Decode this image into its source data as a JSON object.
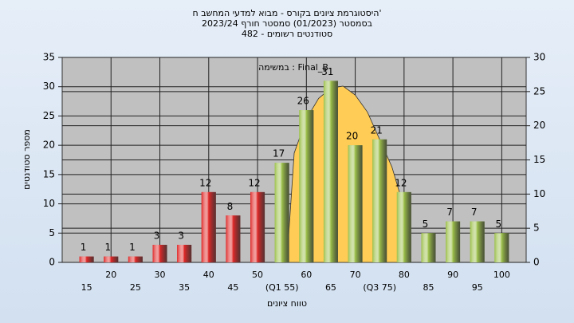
{
  "chart_data": {
    "type": "bar",
    "title": "היסטוגרמת ציונים בקורס - מבוא למדעי המחשב ח'",
    "subtitle": "בסמסטר  (01/2023)  סמסטר חורף 2023/24",
    "subtitle2": "סטודנטים רשומים - 482",
    "annotation": "במשימה : Final_B",
    "ylabel": "מספר סטודנטים",
    "xlabel": "טווח ציונים",
    "x": [
      15,
      20,
      25,
      30,
      35,
      40,
      45,
      50,
      55,
      60,
      65,
      70,
      75,
      80,
      85,
      90,
      95,
      100
    ],
    "values": [
      1,
      1,
      1,
      3,
      3,
      12,
      8,
      12,
      17,
      26,
      31,
      20,
      21,
      12,
      5,
      7,
      7,
      5
    ],
    "colors": [
      "#e02828",
      "#e02828",
      "#e02828",
      "#e02828",
      "#e02828",
      "#e02828",
      "#e02828",
      "#e02828",
      "#9cc04a",
      "#9cc04a",
      "#9cc04a",
      "#9cc04a",
      "#9cc04a",
      "#9cc04a",
      "#9cc04a",
      "#9cc04a",
      "#9cc04a",
      "#9cc04a"
    ],
    "curve": {
      "type": "area",
      "axis": "y2",
      "color": "#ffcc55",
      "x": [
        56,
        57.5,
        60,
        62.5,
        65,
        67.5,
        70,
        72.5,
        75,
        77.5,
        80,
        80.5
      ],
      "values": [
        0,
        16,
        21,
        24,
        25.5,
        25.8,
        24.5,
        22,
        18,
        14,
        8,
        0
      ]
    },
    "xlim": [
      10,
      105
    ],
    "xticks": [
      15,
      20,
      25,
      30,
      35,
      40,
      45,
      50,
      {
        "value": 55,
        "label": "(Q1 55)"
      },
      60,
      65,
      70,
      {
        "value": 75,
        "label": "(Q3 75)"
      },
      80,
      85,
      90,
      95,
      100
    ],
    "ylim": [
      0,
      35
    ],
    "yticks": [
      0,
      5,
      10,
      15,
      20,
      25,
      30,
      35
    ],
    "y2lim": [
      0,
      30
    ],
    "y2ticks": [
      0,
      5,
      10,
      15,
      20,
      25,
      30
    ],
    "grid": true
  }
}
